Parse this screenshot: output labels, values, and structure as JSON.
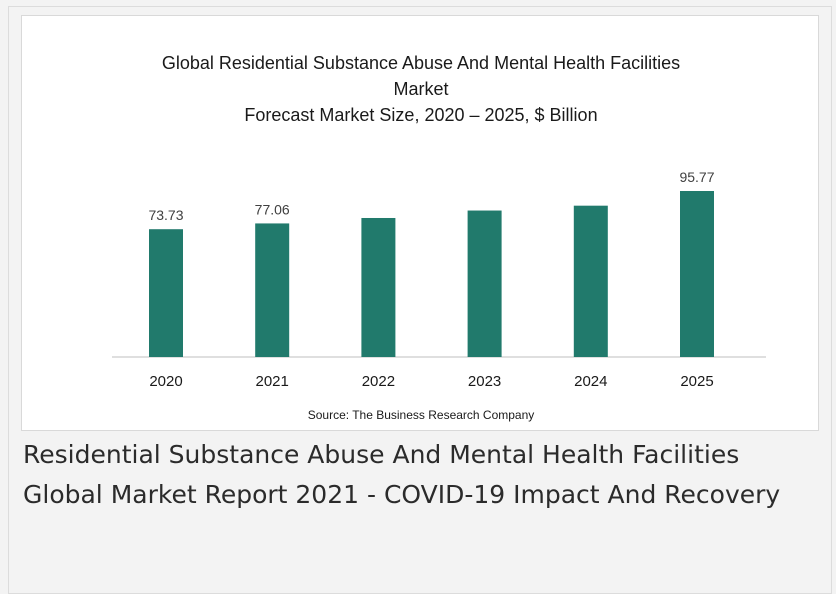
{
  "card": {
    "caption": "Residential Substance Abuse And Mental Health Facilities Global Market Report 2021 - COVID-19 Impact And Recovery"
  },
  "chart_data": {
    "type": "bar",
    "title_lines": [
      "Global Residential Substance Abuse And Mental Health Facilities",
      "Market",
      "Forecast Market Size, 2020 – 2025, $ Billion"
    ],
    "categories": [
      "2020",
      "2021",
      "2022",
      "2023",
      "2024",
      "2025"
    ],
    "values": [
      73.73,
      77.06,
      80.2,
      84.5,
      87.3,
      95.77
    ],
    "data_labels": [
      "73.73",
      "77.06",
      "",
      "",
      "",
      "95.77"
    ],
    "source": "Source: The Business Research Company",
    "bar_color": "#217a6c",
    "ylim": [
      0,
      100
    ],
    "grid": false
  }
}
